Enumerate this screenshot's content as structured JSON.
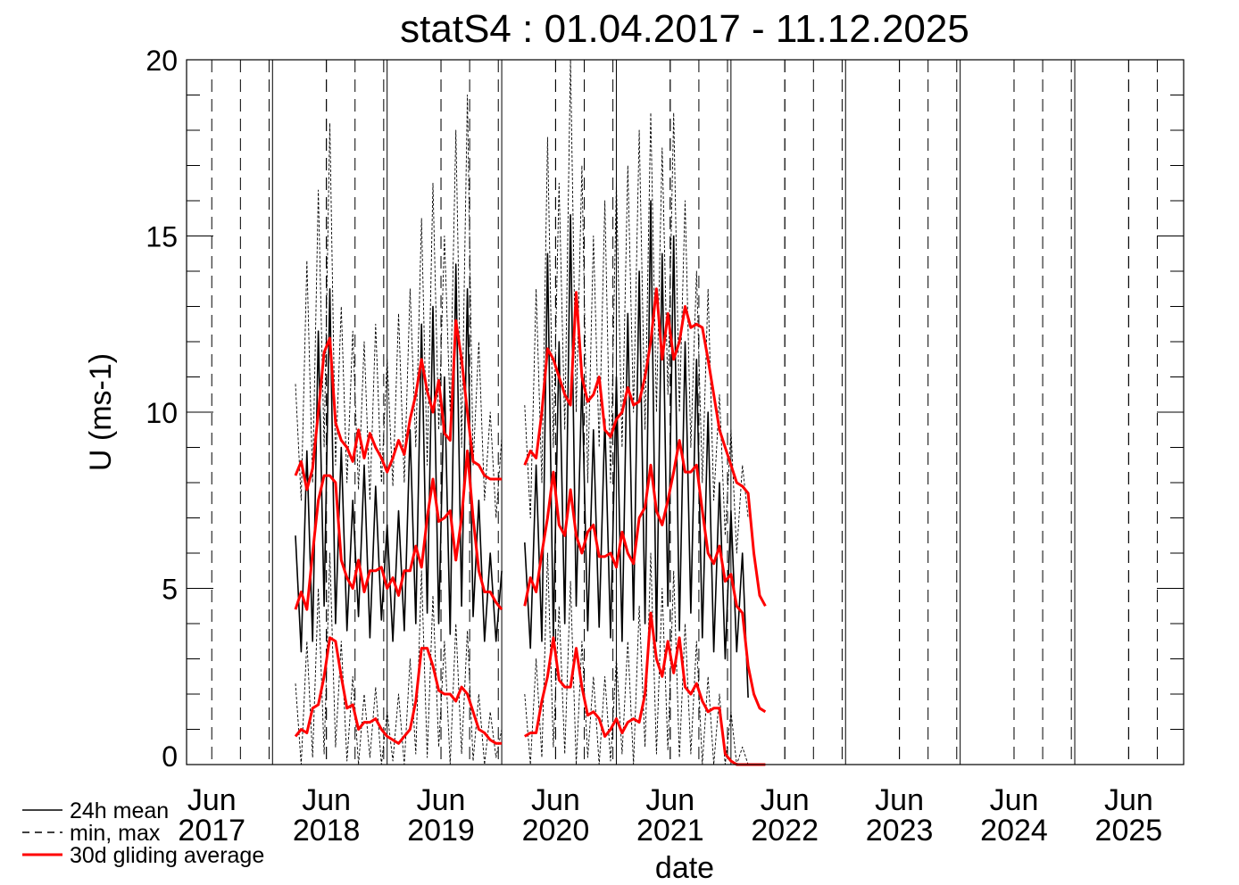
{
  "chart_data": {
    "type": "line",
    "title": "statS4 : 01.04.2017 - 11.12.2025",
    "x_label": "date",
    "y_label": "U (ms-1)",
    "xlim": [
      2017.25,
      2025.95
    ],
    "ylim": [
      0,
      20
    ],
    "xticks": [
      {
        "value": 2017.47,
        "label": "Jun 2017"
      },
      {
        "value": 2018.47,
        "label": "Jun 2018"
      },
      {
        "value": 2019.47,
        "label": "Jun 2019"
      },
      {
        "value": 2020.47,
        "label": "Jun 2020"
      },
      {
        "value": 2021.47,
        "label": "Jun 2021"
      },
      {
        "value": 2022.47,
        "label": "Jun 2022"
      },
      {
        "value": 2023.47,
        "label": "Jun 2023"
      },
      {
        "value": 2024.47,
        "label": "Jun 2024"
      },
      {
        "value": 2025.47,
        "label": "Jun 2025"
      }
    ],
    "yticks": [
      0,
      5,
      10,
      15,
      20
    ],
    "grid": true,
    "legend": "bottom-left",
    "x": [
      2018.2,
      2018.25,
      2018.3,
      2018.35,
      2018.4,
      2018.45,
      2018.5,
      2018.55,
      2018.6,
      2018.65,
      2018.7,
      2018.75,
      2018.8,
      2018.85,
      2018.9,
      2018.95,
      2019.0,
      2019.05,
      2019.1,
      2019.15,
      2019.2,
      2019.25,
      2019.3,
      2019.35,
      2019.4,
      2019.45,
      2019.5,
      2019.55,
      2019.6,
      2019.65,
      2019.7,
      2019.75,
      2019.8,
      2019.85,
      2019.9,
      2019.95,
      2020.0,
      2020.05,
      2020.1,
      2020.15,
      2020.2,
      2020.25,
      2020.3,
      2020.35,
      2020.4,
      2020.45,
      2020.5,
      2020.55,
      2020.6,
      2020.65,
      2020.7,
      2020.75,
      2020.8,
      2020.85,
      2020.9,
      2020.95,
      2021.0,
      2021.05,
      2021.1,
      2021.15,
      2021.2,
      2021.25,
      2021.3,
      2021.35,
      2021.4,
      2021.45,
      2021.5,
      2021.55,
      2021.6,
      2021.65,
      2021.7,
      2021.75,
      2021.8,
      2021.85,
      2021.9,
      2021.95,
      2022.0,
      2022.05,
      2022.1,
      2022.15,
      2022.2,
      2022.25,
      2022.3
    ],
    "series": [
      {
        "name": "min, max",
        "color": "#000000",
        "style": "dashed",
        "values": [
          10.8,
          7.5,
          14.3,
          8.0,
          16.3,
          9.0,
          18.2,
          8.5,
          13.0,
          8.0,
          12.3,
          7.8,
          12.0,
          7.5,
          12.5,
          8.0,
          11.5,
          7.9,
          12.8,
          8.0,
          13.5,
          9.0,
          15.5,
          8.5,
          16.5,
          9.5,
          15.0,
          10.0,
          18.0,
          9.0,
          19.0,
          8.5,
          12.0,
          7.5,
          10.0,
          7.0,
          9.3,
          null,
          null,
          null,
          10.2,
          7.0,
          13.5,
          8.0,
          17.8,
          9.0,
          16.5,
          9.5,
          20.0,
          10.0,
          17.0,
          8.0,
          15.0,
          9.0,
          16.0,
          8.0,
          16.5,
          9.0,
          17.0,
          10.0,
          18.0,
          9.5,
          18.5,
          10.0,
          17.5,
          10.5,
          18.5,
          10.0,
          16.0,
          9.0,
          14.0,
          8.0,
          13.5,
          7.5,
          10.5,
          6.5,
          9.5,
          6.0,
          8.5,
          7.0,
          null,
          null,
          null
        ]
      },
      {
        "color": "#000000",
        "style": "dashed",
        "values": [
          2.3,
          0.0,
          3.5,
          0.2,
          5.0,
          0.3,
          6.0,
          0.5,
          3.5,
          0.1,
          2.5,
          0.0,
          2.0,
          0.2,
          2.2,
          0.0,
          1.5,
          0.1,
          2.0,
          0.0,
          3.0,
          0.3,
          5.5,
          0.2,
          4.8,
          0.5,
          3.5,
          0.0,
          4.0,
          0.3,
          3.8,
          0.1,
          2.0,
          0.0,
          1.5,
          0.2,
          1.0,
          null,
          null,
          null,
          2.0,
          0.0,
          3.0,
          0.2,
          6.0,
          0.5,
          4.5,
          0.3,
          5.2,
          0.0,
          3.5,
          0.2,
          2.5,
          0.0,
          2.5,
          0.1,
          3.0,
          0.3,
          3.5,
          0.0,
          4.5,
          0.5,
          6.0,
          0.3,
          5.0,
          0.4,
          5.5,
          0.2,
          4.0,
          0.3,
          3.5,
          0.0,
          2.5,
          0.0,
          2.0,
          0.0,
          1.5,
          0.0,
          0.5,
          0.0,
          null,
          null,
          null
        ]
      },
      {
        "name": "24h mean",
        "color": "#000000",
        "style": "solid",
        "values": [
          6.5,
          3.2,
          8.9,
          3.5,
          12.3,
          4.5,
          13.5,
          4.0,
          9.0,
          3.8,
          7.5,
          4.2,
          8.5,
          3.6,
          7.9,
          4.1,
          6.8,
          3.5,
          7.2,
          3.8,
          9.5,
          4.0,
          12.5,
          4.3,
          13.0,
          4.0,
          11.0,
          3.7,
          14.2,
          4.5,
          13.5,
          4.2,
          7.5,
          3.5,
          6.0,
          3.5,
          5.5,
          null,
          null,
          null,
          6.3,
          3.3,
          8.5,
          3.5,
          14.5,
          3.6,
          12.0,
          4.0,
          15.6,
          4.5,
          11.0,
          3.8,
          9.5,
          3.9,
          9.8,
          3.6,
          11.0,
          3.5,
          12.8,
          4.1,
          14.0,
          4.0,
          16.0,
          3.5,
          14.5,
          4.5,
          15.0,
          3.8,
          12.0,
          4.3,
          11.5,
          3.6,
          10.0,
          3.2,
          8.0,
          3.0,
          7.2,
          3.2,
          6.0,
          1.9,
          null,
          null,
          null
        ]
      },
      {
        "color": "#ff0000",
        "style": "thick",
        "values": [
          0.8,
          1.0,
          0.9,
          1.6,
          1.7,
          2.5,
          3.6,
          3.5,
          2.5,
          1.6,
          1.7,
          1.0,
          1.2,
          1.2,
          1.3,
          1.0,
          0.8,
          0.7,
          0.6,
          0.8,
          1.0,
          1.8,
          3.3,
          3.3,
          2.8,
          2.1,
          2.0,
          2.0,
          1.8,
          2.2,
          2.0,
          1.5,
          1.0,
          0.9,
          0.7,
          0.6,
          0.6,
          null,
          null,
          null,
          0.8,
          0.9,
          0.9,
          1.8,
          2.5,
          3.6,
          2.4,
          2.2,
          2.2,
          3.3,
          2.2,
          1.4,
          1.5,
          1.3,
          0.8,
          1.0,
          1.3,
          0.9,
          1.2,
          1.3,
          1.2,
          2.0,
          4.3,
          3.0,
          2.5,
          3.5,
          2.6,
          3.6,
          2.2,
          2.0,
          2.3,
          1.8,
          1.5,
          1.6,
          1.6,
          0.3,
          0.1,
          0.0,
          0.0,
          0.0,
          0.0,
          0.0,
          0.0
        ]
      },
      {
        "name": "30d gliding average",
        "color": "#ff0000",
        "style": "thick",
        "values": [
          4.4,
          4.9,
          4.4,
          6.0,
          7.5,
          8.2,
          8.2,
          8.0,
          5.8,
          5.3,
          5.0,
          5.8,
          4.9,
          5.5,
          5.5,
          5.6,
          5.0,
          5.3,
          4.8,
          5.5,
          5.5,
          6.2,
          5.6,
          7.0,
          8.1,
          6.9,
          7.0,
          7.2,
          5.8,
          7.0,
          8.9,
          7.0,
          5.5,
          4.9,
          4.9,
          4.6,
          4.4,
          null,
          null,
          null,
          4.5,
          5.3,
          4.9,
          6.0,
          7.0,
          8.3,
          6.8,
          6.5,
          7.8,
          6.5,
          6.0,
          6.6,
          6.8,
          5.9,
          5.9,
          6.0,
          5.6,
          6.6,
          6.0,
          5.7,
          7.0,
          7.3,
          8.5,
          7.2,
          6.8,
          7.5,
          8.3,
          9.2,
          8.3,
          8.3,
          8.5,
          7.2,
          6.0,
          5.7,
          6.2,
          5.2,
          5.4,
          4.5,
          4.3,
          2.8,
          2.0,
          1.6,
          1.5
        ]
      },
      {
        "color": "#ff0000",
        "style": "thick",
        "values": [
          8.2,
          8.6,
          7.8,
          8.4,
          10.0,
          11.7,
          12.1,
          9.7,
          9.2,
          9.0,
          8.6,
          9.5,
          8.7,
          9.4,
          9.0,
          8.7,
          8.3,
          8.7,
          9.2,
          8.8,
          9.8,
          10.5,
          11.5,
          10.6,
          10.0,
          10.9,
          9.4,
          9.2,
          12.6,
          11.5,
          10.0,
          8.6,
          8.5,
          8.2,
          8.1,
          8.1,
          8.1,
          null,
          null,
          null,
          8.5,
          8.9,
          8.7,
          10.0,
          11.8,
          11.5,
          11.0,
          10.5,
          10.2,
          13.4,
          11.0,
          10.3,
          10.5,
          11.0,
          9.5,
          9.3,
          9.8,
          10.0,
          10.7,
          10.2,
          10.3,
          11.0,
          12.0,
          13.5,
          11.5,
          12.8,
          11.5,
          12.0,
          13.0,
          12.4,
          12.5,
          12.4,
          11.5,
          10.5,
          9.5,
          9.0,
          8.5,
          8.0,
          7.9,
          7.7,
          6.0,
          4.8,
          4.5
        ]
      }
    ]
  }
}
